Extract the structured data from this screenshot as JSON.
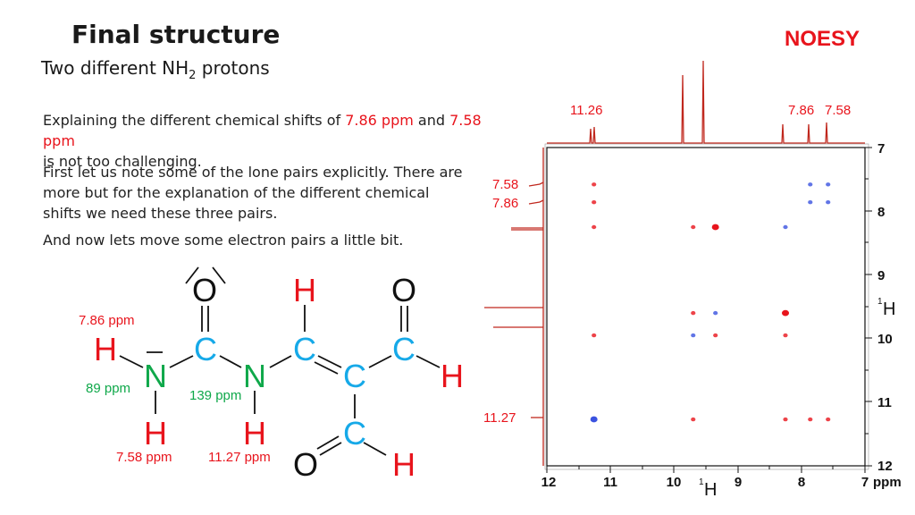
{
  "slide": {
    "title": "Final structure",
    "subtitle_pre": "Two different NH",
    "subtitle_sub": "2",
    "subtitle_post": " protons",
    "badge": "NOESY"
  },
  "text": {
    "p1_a": "Explaining the different chemical shifts of ",
    "p1_b": "7.86 ppm",
    "p1_c": " and ",
    "p1_d": "7.58 ppm",
    "p1_e": "is not too challenging.",
    "p2": "First let us note some of the lone pairs explicitly. There are more but for the explanation of the different chemical shifts we need these three pairs.",
    "p3": "And now lets move some electron pairs a little bit."
  },
  "molecule": {
    "atoms": {
      "O_top": "O",
      "H_top": "H",
      "O_right": "O",
      "H_nh2a": "H",
      "C_amide": "C",
      "C_vinyl": "C",
      "C_ald1": "C",
      "N_nh2": "N",
      "N_nh": "N",
      "C_center": "C",
      "H_ald1": "H",
      "H_nh2b": "H",
      "H_nh": "H",
      "C_ald2": "C",
      "O_bottom": "O",
      "H_ald2": "H"
    },
    "labels": {
      "h786": "7.86 ppm",
      "n89": "89 ppm",
      "n139": "139 ppm",
      "h758": "7.58 ppm",
      "h1127": "11.27 ppm"
    },
    "colors": {
      "H": "#e8141c",
      "C": "#16a9e8",
      "N": "#0fa84a",
      "O": "#111111",
      "label_red": "#e8141c",
      "label_green": "#0fa84a"
    }
  },
  "spectrum": {
    "top_labels": {
      "a": "11.26",
      "b": "7.86",
      "c": "7.58"
    },
    "left_labels": {
      "a": "7.58",
      "b": "7.86",
      "c": "11.27"
    },
    "x_ticks": [
      "12",
      "11",
      "10",
      "9",
      "8",
      "7"
    ],
    "y_ticks": [
      "7",
      "8",
      "9",
      "10",
      "11",
      "12"
    ],
    "axis_unit": "ppm",
    "nucleus": "H",
    "nucleus_mass": "1",
    "colors": {
      "positive": "#e8141c",
      "negative": "#3a52e0",
      "projection": "#c0281e"
    }
  },
  "chart_data": {
    "type": "scatter",
    "title": "",
    "xlabel": "1H ppm",
    "ylabel": "1H ppm",
    "xlim": [
      12,
      7
    ],
    "ylim": [
      7,
      12
    ],
    "x_reversed": true,
    "y_increases_downward": true,
    "projection_peaks_ppm": [
      11.26,
      9.6,
      9.1,
      7.86,
      7.58
    ],
    "series": [
      {
        "name": "",
        "points": [
          {
            "x": 11.26,
            "y": 7.58,
            "sign": "pos"
          },
          {
            "x": 11.26,
            "y": 7.86,
            "sign": "pos"
          },
          {
            "x": 11.26,
            "y": 8.25,
            "sign": "pos"
          },
          {
            "x": 9.7,
            "y": 8.25,
            "sign": "pos"
          },
          {
            "x": 9.35,
            "y": 8.25,
            "sign": "pos_strong"
          },
          {
            "x": 8.25,
            "y": 8.25,
            "sign": "neg"
          },
          {
            "x": 7.86,
            "y": 7.58,
            "sign": "neg"
          },
          {
            "x": 7.58,
            "y": 7.58,
            "sign": "neg"
          },
          {
            "x": 7.86,
            "y": 7.86,
            "sign": "neg"
          },
          {
            "x": 7.58,
            "y": 7.86,
            "sign": "neg"
          },
          {
            "x": 9.7,
            "y": 9.6,
            "sign": "pos"
          },
          {
            "x": 9.35,
            "y": 9.6,
            "sign": "neg"
          },
          {
            "x": 8.25,
            "y": 9.6,
            "sign": "pos_strong"
          },
          {
            "x": 11.26,
            "y": 9.95,
            "sign": "pos"
          },
          {
            "x": 9.7,
            "y": 9.95,
            "sign": "neg"
          },
          {
            "x": 9.35,
            "y": 9.95,
            "sign": "pos"
          },
          {
            "x": 8.25,
            "y": 9.95,
            "sign": "pos"
          },
          {
            "x": 11.26,
            "y": 11.27,
            "sign": "neg_strong"
          },
          {
            "x": 9.7,
            "y": 11.27,
            "sign": "pos"
          },
          {
            "x": 8.25,
            "y": 11.27,
            "sign": "pos"
          },
          {
            "x": 7.86,
            "y": 11.27,
            "sign": "pos"
          },
          {
            "x": 7.58,
            "y": 11.27,
            "sign": "pos"
          }
        ]
      }
    ]
  }
}
